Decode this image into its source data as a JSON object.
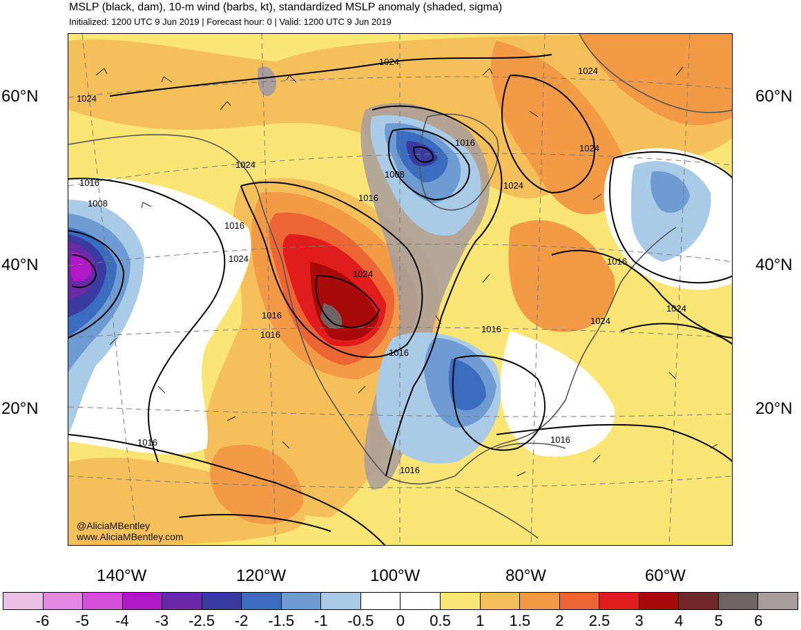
{
  "header": {
    "title": "MSLP (black, dam), 10-m wind (barbs, kt), standardized MSLP anomaly (shaded, sigma)",
    "subtitle": "Initialized: 1200 UTC 9 Jun 2019 | Forecast hour: 0 | Valid: 1200 UTC 9 Jun 2019"
  },
  "axes": {
    "lat_left": [
      "60°N",
      "40°N",
      "20°N"
    ],
    "lat_right": [
      "60°N",
      "40°N",
      "20°N"
    ],
    "lon": [
      "140°W",
      "120°W",
      "100°W",
      "80°W",
      "60°W"
    ]
  },
  "isobar_labels": [
    "1024",
    "1024",
    "1024",
    "1024",
    "1016",
    "1008",
    "1016",
    "1008",
    "1024",
    "1016",
    "1016",
    "1024",
    "1016",
    "1024",
    "1024",
    "1016",
    "1016",
    "1024",
    "1016",
    "1016",
    "1016",
    "1016",
    "1016",
    "1024"
  ],
  "credits": {
    "handle": "@AliciaMBentley",
    "site": "www.AliciaMBentley.com"
  },
  "colorbar": {
    "colors": [
      "#ecbfe6",
      "#e387e2",
      "#d64fdc",
      "#b018c8",
      "#6a2aa8",
      "#3a3aa0",
      "#3a6cc0",
      "#6e9cd2",
      "#a9cbe8",
      "#ffffff",
      "#ffffff",
      "#fbe574",
      "#f5c05a",
      "#f29a45",
      "#ee6535",
      "#e01c1c",
      "#a80a0a",
      "#702828",
      "#6e6464",
      "#a89c9c"
    ],
    "ticks": [
      "-6",
      "-5",
      "-4",
      "-3",
      "-2.5",
      "-2",
      "-1.5",
      "-1",
      "-0.5",
      "0",
      "0.5",
      "1",
      "1.5",
      "2",
      "2.5",
      "3",
      "4",
      "5",
      "6"
    ]
  },
  "colors": {
    "land_outline": "#555555",
    "isobar": "#000000"
  }
}
